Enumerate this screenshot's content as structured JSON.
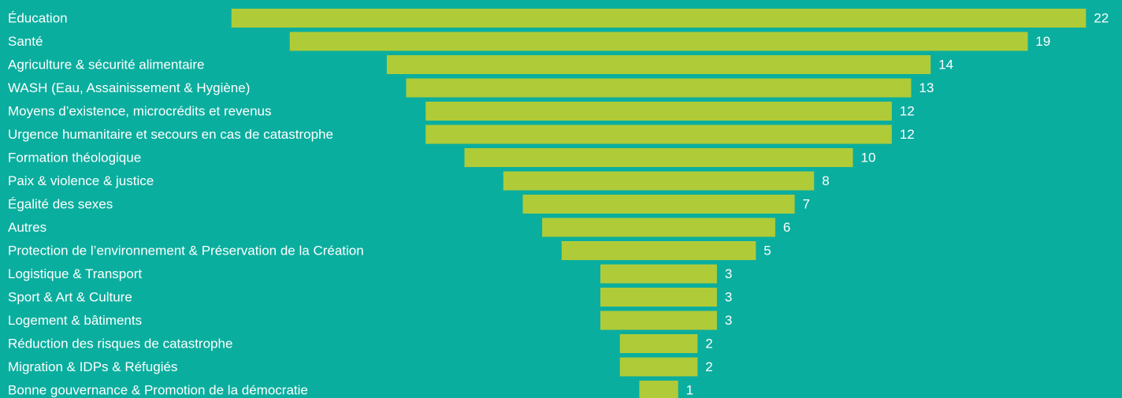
{
  "colors": {
    "background": "#0aae9e",
    "bar": "#b0cb38",
    "text": "#ffffff"
  },
  "chart_data": {
    "type": "bar",
    "orientation": "horizontal",
    "style": "centered-funnel",
    "title": "",
    "xlabel": "",
    "ylabel": "",
    "categories": [
      "Éducation",
      "Santé",
      "Agriculture & sécurité alimentaire",
      "WASH (Eau, Assainissement & Hygiène)",
      "Moyens d’existence, microcrédits et revenus",
      "Urgence humanitaire et secours en cas de catastrophe",
      "Formation théologique",
      "Paix & violence & justice",
      "Égalité des sexes",
      "Autres",
      "Protection de l’environnement & Préservation de la Création",
      "Logistique & Transport",
      "Sport & Art & Culture",
      "Logement & bâtiments",
      "Réduction des risques de catastrophe",
      "Migration & IDPs & Réfugiés",
      "Bonne gouvernance & Promotion de la démocratie"
    ],
    "values": [
      22,
      19,
      14,
      13,
      12,
      12,
      10,
      8,
      7,
      6,
      5,
      3,
      3,
      3,
      2,
      2,
      1
    ],
    "value_labels": [
      "22",
      "19",
      "14",
      "13",
      "12",
      "12",
      "10",
      "8",
      "7",
      "6",
      "5",
      "3",
      "3",
      "3",
      "2",
      "2",
      "1"
    ],
    "xlim": [
      0,
      22
    ],
    "grid": false,
    "legend": "none"
  }
}
